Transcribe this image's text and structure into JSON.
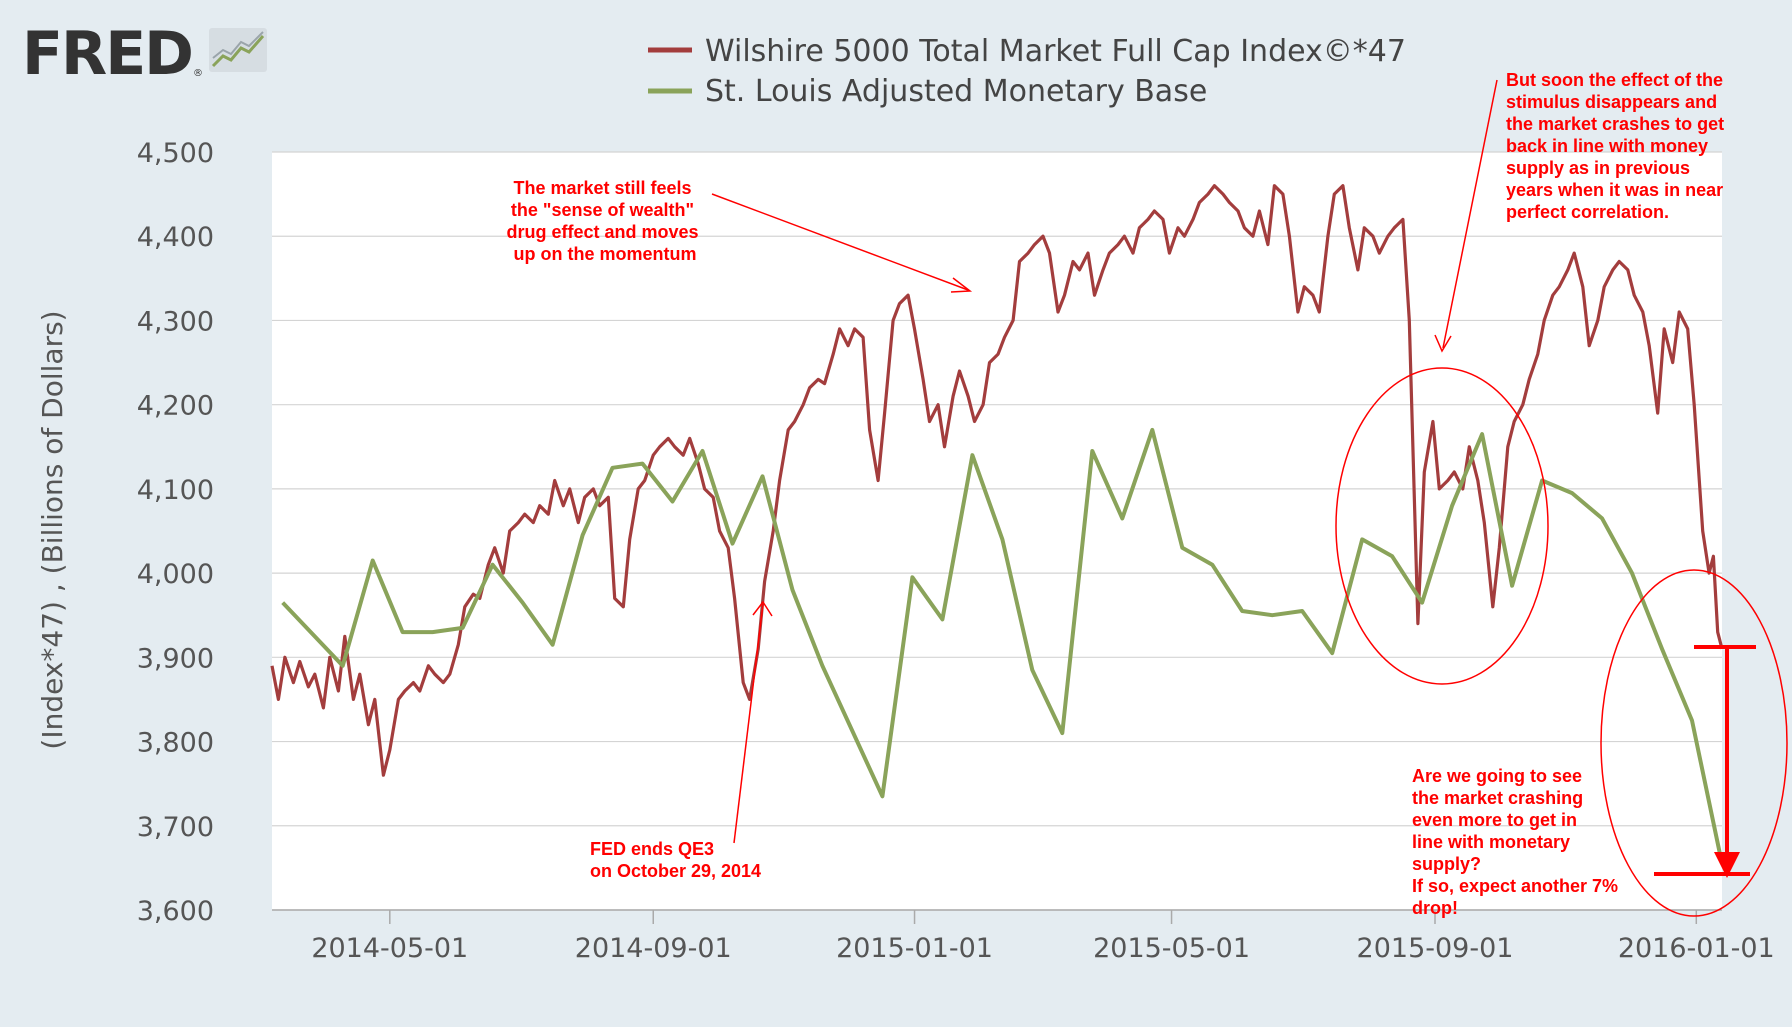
{
  "header": {
    "logo_text": "FRED"
  },
  "chart_data": {
    "type": "line",
    "ylabel": "(Index*47) , (Billions of Dollars)",
    "xlabel": "",
    "ylim": [
      3600,
      4500
    ],
    "yticks": [
      "4,500",
      "4,400",
      "4,300",
      "4,200",
      "4,100",
      "4,000",
      "3,900",
      "3,800",
      "3,700",
      "3,600"
    ],
    "ytick_values": [
      4500,
      4400,
      4300,
      4200,
      4100,
      4000,
      3900,
      3800,
      3700,
      3600
    ],
    "xlim": [
      "2014-03-07",
      "2016-01-13"
    ],
    "xticks": [
      "2014-05-01",
      "2014-09-01",
      "2015-01-01",
      "2015-05-01",
      "2015-09-01",
      "2016-01-01"
    ],
    "grid": true,
    "legend_position": "top",
    "colors": {
      "wilshire": "#a33d3d",
      "monetary": "#8aa35a",
      "annotation": "#ff0000",
      "plot_bg": "#ffffff",
      "page_bg": "#e4ecf1"
    },
    "series": [
      {
        "name": "Wilshire 5000 Total Market Full Cap Index©*47",
        "key": "wilshire",
        "points": [
          [
            "2014-03-07",
            3890
          ],
          [
            "2014-03-10",
            3850
          ],
          [
            "2014-03-13",
            3900
          ],
          [
            "2014-03-17",
            3870
          ],
          [
            "2014-03-20",
            3895
          ],
          [
            "2014-03-24",
            3865
          ],
          [
            "2014-03-27",
            3880
          ],
          [
            "2014-03-31",
            3840
          ],
          [
            "2014-04-03",
            3900
          ],
          [
            "2014-04-07",
            3860
          ],
          [
            "2014-04-10",
            3925
          ],
          [
            "2014-04-14",
            3850
          ],
          [
            "2014-04-17",
            3880
          ],
          [
            "2014-04-21",
            3820
          ],
          [
            "2014-04-24",
            3850
          ],
          [
            "2014-04-28",
            3760
          ],
          [
            "2014-05-01",
            3790
          ],
          [
            "2014-05-05",
            3850
          ],
          [
            "2014-05-08",
            3860
          ],
          [
            "2014-05-12",
            3870
          ],
          [
            "2014-05-15",
            3860
          ],
          [
            "2014-05-19",
            3890
          ],
          [
            "2014-05-22",
            3880
          ],
          [
            "2014-05-26",
            3870
          ],
          [
            "2014-05-29",
            3880
          ],
          [
            "2014-06-02",
            3915
          ],
          [
            "2014-06-05",
            3960
          ],
          [
            "2014-06-09",
            3975
          ],
          [
            "2014-06-12",
            3970
          ],
          [
            "2014-06-16",
            4010
          ],
          [
            "2014-06-19",
            4030
          ],
          [
            "2014-06-23",
            4000
          ],
          [
            "2014-06-26",
            4050
          ],
          [
            "2014-06-30",
            4060
          ],
          [
            "2014-07-03",
            4070
          ],
          [
            "2014-07-07",
            4060
          ],
          [
            "2014-07-10",
            4080
          ],
          [
            "2014-07-14",
            4070
          ],
          [
            "2014-07-17",
            4110
          ],
          [
            "2014-07-21",
            4080
          ],
          [
            "2014-07-24",
            4100
          ],
          [
            "2014-07-28",
            4060
          ],
          [
            "2014-07-31",
            4090
          ],
          [
            "2014-08-04",
            4100
          ],
          [
            "2014-08-07",
            4080
          ],
          [
            "2014-08-11",
            4090
          ],
          [
            "2014-08-14",
            3970
          ],
          [
            "2014-08-18",
            3960
          ],
          [
            "2014-08-21",
            4040
          ],
          [
            "2014-08-25",
            4100
          ],
          [
            "2014-08-28",
            4110
          ],
          [
            "2014-09-01",
            4140
          ],
          [
            "2014-09-04",
            4150
          ],
          [
            "2014-09-08",
            4160
          ],
          [
            "2014-09-11",
            4150
          ],
          [
            "2014-09-15",
            4140
          ],
          [
            "2014-09-18",
            4160
          ],
          [
            "2014-09-22",
            4130
          ],
          [
            "2014-09-25",
            4100
          ],
          [
            "2014-09-29",
            4090
          ],
          [
            "2014-10-02",
            4050
          ],
          [
            "2014-10-06",
            4030
          ],
          [
            "2014-10-09",
            3970
          ],
          [
            "2014-10-13",
            3870
          ],
          [
            "2014-10-16",
            3850
          ],
          [
            "2014-10-20",
            3910
          ],
          [
            "2014-10-23",
            3990
          ],
          [
            "2014-10-27",
            4050
          ],
          [
            "2014-10-30",
            4110
          ],
          [
            "2014-11-03",
            4170
          ],
          [
            "2014-11-06",
            4180
          ],
          [
            "2014-11-10",
            4200
          ],
          [
            "2014-11-13",
            4220
          ],
          [
            "2014-11-17",
            4230
          ],
          [
            "2014-11-20",
            4225
          ],
          [
            "2014-11-24",
            4260
          ],
          [
            "2014-11-27",
            4290
          ],
          [
            "2014-12-01",
            4270
          ],
          [
            "2014-12-04",
            4290
          ],
          [
            "2014-12-08",
            4280
          ],
          [
            "2014-12-11",
            4170
          ],
          [
            "2014-12-15",
            4110
          ],
          [
            "2014-12-18",
            4190
          ],
          [
            "2014-12-22",
            4300
          ],
          [
            "2014-12-25",
            4320
          ],
          [
            "2014-12-29",
            4330
          ],
          [
            "2015-01-01",
            4290
          ],
          [
            "2015-01-05",
            4230
          ],
          [
            "2015-01-08",
            4180
          ],
          [
            "2015-01-12",
            4200
          ],
          [
            "2015-01-15",
            4150
          ],
          [
            "2015-01-19",
            4210
          ],
          [
            "2015-01-22",
            4240
          ],
          [
            "2015-01-26",
            4210
          ],
          [
            "2015-01-29",
            4180
          ],
          [
            "2015-02-02",
            4200
          ],
          [
            "2015-02-05",
            4250
          ],
          [
            "2015-02-09",
            4260
          ],
          [
            "2015-02-12",
            4280
          ],
          [
            "2015-02-16",
            4300
          ],
          [
            "2015-02-19",
            4370
          ],
          [
            "2015-02-23",
            4380
          ],
          [
            "2015-02-26",
            4390
          ],
          [
            "2015-03-02",
            4400
          ],
          [
            "2015-03-05",
            4380
          ],
          [
            "2015-03-09",
            4310
          ],
          [
            "2015-03-12",
            4330
          ],
          [
            "2015-03-16",
            4370
          ],
          [
            "2015-03-19",
            4360
          ],
          [
            "2015-03-23",
            4380
          ],
          [
            "2015-03-26",
            4330
          ],
          [
            "2015-03-30",
            4360
          ],
          [
            "2015-04-02",
            4380
          ],
          [
            "2015-04-06",
            4390
          ],
          [
            "2015-04-09",
            4400
          ],
          [
            "2015-04-13",
            4380
          ],
          [
            "2015-04-16",
            4410
          ],
          [
            "2015-04-20",
            4420
          ],
          [
            "2015-04-23",
            4430
          ],
          [
            "2015-04-27",
            4420
          ],
          [
            "2015-04-30",
            4380
          ],
          [
            "2015-05-04",
            4410
          ],
          [
            "2015-05-07",
            4400
          ],
          [
            "2015-05-11",
            4420
          ],
          [
            "2015-05-14",
            4440
          ],
          [
            "2015-05-18",
            4450
          ],
          [
            "2015-05-21",
            4460
          ],
          [
            "2015-05-25",
            4450
          ],
          [
            "2015-05-28",
            4440
          ],
          [
            "2015-06-01",
            4430
          ],
          [
            "2015-06-04",
            4410
          ],
          [
            "2015-06-08",
            4400
          ],
          [
            "2015-06-11",
            4430
          ],
          [
            "2015-06-15",
            4390
          ],
          [
            "2015-06-18",
            4460
          ],
          [
            "2015-06-22",
            4450
          ],
          [
            "2015-06-25",
            4400
          ],
          [
            "2015-06-29",
            4310
          ],
          [
            "2015-07-02",
            4340
          ],
          [
            "2015-07-06",
            4330
          ],
          [
            "2015-07-09",
            4310
          ],
          [
            "2015-07-13",
            4400
          ],
          [
            "2015-07-16",
            4450
          ],
          [
            "2015-07-20",
            4460
          ],
          [
            "2015-07-23",
            4410
          ],
          [
            "2015-07-27",
            4360
          ],
          [
            "2015-07-30",
            4410
          ],
          [
            "2015-08-03",
            4400
          ],
          [
            "2015-08-06",
            4380
          ],
          [
            "2015-08-10",
            4400
          ],
          [
            "2015-08-13",
            4410
          ],
          [
            "2015-08-17",
            4420
          ],
          [
            "2015-08-20",
            4300
          ],
          [
            "2015-08-24",
            3940
          ],
          [
            "2015-08-27",
            4120
          ],
          [
            "2015-08-31",
            4180
          ],
          [
            "2015-09-03",
            4100
          ],
          [
            "2015-09-07",
            4110
          ],
          [
            "2015-09-10",
            4120
          ],
          [
            "2015-09-14",
            4100
          ],
          [
            "2015-09-17",
            4150
          ],
          [
            "2015-09-21",
            4110
          ],
          [
            "2015-09-24",
            4060
          ],
          [
            "2015-09-28",
            3960
          ],
          [
            "2015-10-01",
            4030
          ],
          [
            "2015-10-05",
            4150
          ],
          [
            "2015-10-08",
            4180
          ],
          [
            "2015-10-12",
            4200
          ],
          [
            "2015-10-15",
            4230
          ],
          [
            "2015-10-19",
            4260
          ],
          [
            "2015-10-22",
            4300
          ],
          [
            "2015-10-26",
            4330
          ],
          [
            "2015-10-29",
            4340
          ],
          [
            "2015-11-02",
            4360
          ],
          [
            "2015-11-05",
            4380
          ],
          [
            "2015-11-09",
            4340
          ],
          [
            "2015-11-12",
            4270
          ],
          [
            "2015-11-16",
            4300
          ],
          [
            "2015-11-19",
            4340
          ],
          [
            "2015-11-23",
            4360
          ],
          [
            "2015-11-26",
            4370
          ],
          [
            "2015-11-30",
            4360
          ],
          [
            "2015-12-03",
            4330
          ],
          [
            "2015-12-07",
            4310
          ],
          [
            "2015-12-10",
            4270
          ],
          [
            "2015-12-14",
            4190
          ],
          [
            "2015-12-17",
            4290
          ],
          [
            "2015-12-21",
            4250
          ],
          [
            "2015-12-24",
            4310
          ],
          [
            "2015-12-28",
            4290
          ],
          [
            "2015-12-31",
            4200
          ],
          [
            "2016-01-04",
            4050
          ],
          [
            "2016-01-07",
            4000
          ],
          [
            "2016-01-09",
            4020
          ],
          [
            "2016-01-11",
            3930
          ],
          [
            "2016-01-13",
            3910
          ]
        ]
      },
      {
        "name": "St. Louis Adjusted Monetary Base",
        "key": "monetary",
        "points": [
          [
            "2014-03-12",
            3965
          ],
          [
            "2014-04-09",
            3890
          ],
          [
            "2014-04-23",
            4015
          ],
          [
            "2014-05-07",
            3930
          ],
          [
            "2014-05-21",
            3930
          ],
          [
            "2014-06-04",
            3935
          ],
          [
            "2014-06-18",
            4010
          ],
          [
            "2014-07-02",
            3965
          ],
          [
            "2014-07-16",
            3915
          ],
          [
            "2014-07-30",
            4045
          ],
          [
            "2014-08-13",
            4125
          ],
          [
            "2014-08-27",
            4130
          ],
          [
            "2014-09-10",
            4085
          ],
          [
            "2014-09-24",
            4145
          ],
          [
            "2014-10-08",
            4035
          ],
          [
            "2014-10-22",
            4115
          ],
          [
            "2014-11-05",
            3980
          ],
          [
            "2014-11-19",
            3890
          ],
          [
            "2014-12-17",
            3735
          ],
          [
            "2014-12-31",
            3995
          ],
          [
            "2015-01-14",
            3945
          ],
          [
            "2015-01-28",
            4140
          ],
          [
            "2015-02-11",
            4040
          ],
          [
            "2015-02-25",
            3885
          ],
          [
            "2015-03-11",
            3810
          ],
          [
            "2015-03-25",
            4145
          ],
          [
            "2015-04-08",
            4065
          ],
          [
            "2015-04-22",
            4170
          ],
          [
            "2015-05-06",
            4030
          ],
          [
            "2015-05-20",
            4010
          ],
          [
            "2015-06-03",
            3955
          ],
          [
            "2015-06-17",
            3950
          ],
          [
            "2015-07-01",
            3955
          ],
          [
            "2015-07-15",
            3905
          ],
          [
            "2015-07-29",
            4040
          ],
          [
            "2015-08-12",
            4020
          ],
          [
            "2015-08-26",
            3965
          ],
          [
            "2015-09-09",
            4080
          ],
          [
            "2015-09-23",
            4165
          ],
          [
            "2015-10-07",
            3985
          ],
          [
            "2015-10-21",
            4110
          ],
          [
            "2015-11-04",
            4095
          ],
          [
            "2015-11-18",
            4065
          ],
          [
            "2015-12-02",
            4000
          ],
          [
            "2015-12-16",
            3910
          ],
          [
            "2015-12-30",
            3825
          ],
          [
            "2016-01-13",
            3655
          ]
        ]
      }
    ],
    "annotations": [
      {
        "key": "momentum",
        "lines": [
          "The market  still feels",
          "the \"sense of wealth\"",
          "drug effect and moves",
          "up on the momentum"
        ]
      },
      {
        "key": "qe3",
        "lines": [
          "FED ends QE3",
          "on October 29, 2014"
        ]
      },
      {
        "key": "crash",
        "lines": [
          "But soon the effect of the",
          "stimulus disappears and",
          "the market crashes to get",
          "back in line with money",
          "supply as in previous",
          "years when it was in near",
          "perfect correlation."
        ]
      },
      {
        "key": "question",
        "lines": [
          "Are we going to see",
          "the market crashing",
          "even more to get in",
          "line with monetary",
          "supply?",
          "If so, expect another 7%",
          "drop!"
        ]
      }
    ]
  }
}
